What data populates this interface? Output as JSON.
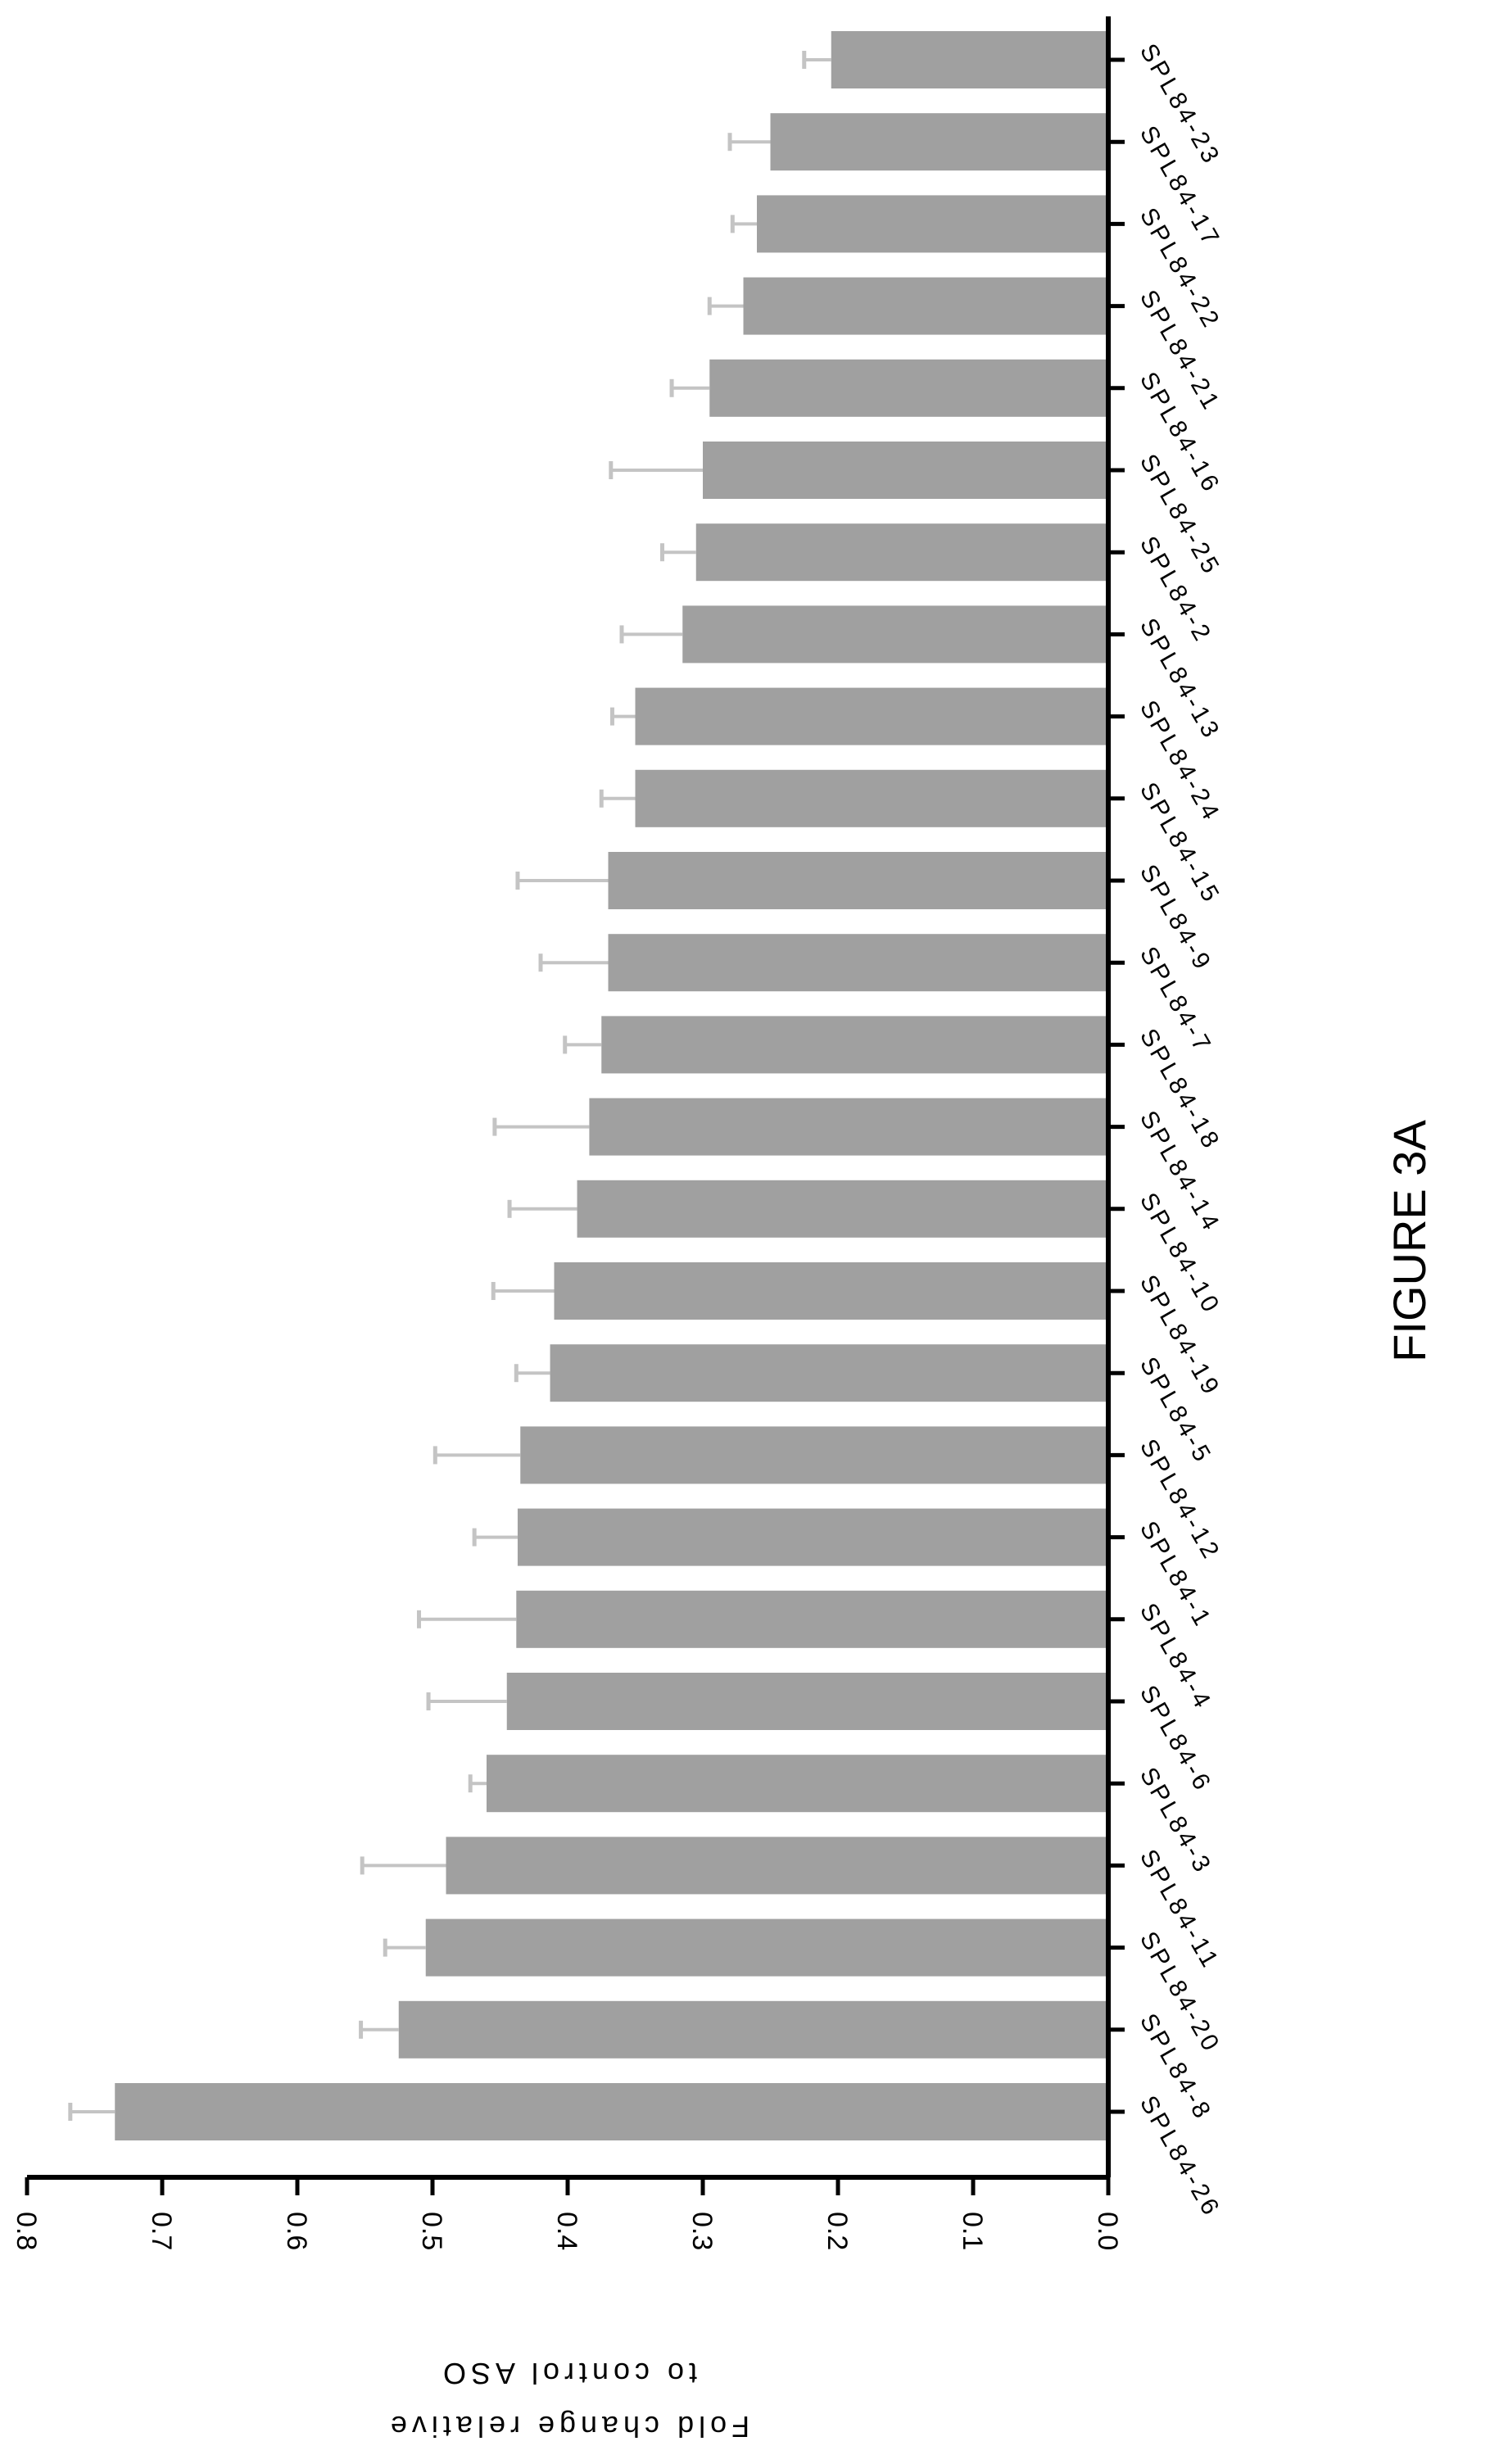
{
  "figure_label": "FIGURE 3A",
  "chart_data": {
    "type": "bar",
    "title": "",
    "xlabel": "",
    "ylabel": "Fold change relative to control ASO",
    "ylabel_lines": [
      "Fold change relative",
      "to control ASO"
    ],
    "ylim": [
      0,
      0.8
    ],
    "yticks": [
      0.0,
      0.1,
      0.2,
      0.3,
      0.4,
      0.5,
      0.6,
      0.7,
      0.8
    ],
    "ytick_labels": [
      "0.0",
      "0.1",
      "0.2",
      "0.3",
      "0.4",
      "0.5",
      "0.6",
      "0.7",
      "0.8"
    ],
    "categories": [
      "SPL84-26",
      "SPL84-8",
      "SPL84-20",
      "SPL84-11",
      "SPL84-3",
      "SPL84-6",
      "SPL84-4",
      "SPL84-1",
      "SPL84-12",
      "SPL84-5",
      "SPL84-19",
      "SPL84-10",
      "SPL84-14",
      "SPL84-18",
      "SPL84-7",
      "SPL84-9",
      "SPL84-15",
      "SPL84-24",
      "SPL84-13",
      "SPL84-2",
      "SPL84-25",
      "SPL84-16",
      "SPL84-21",
      "SPL84-22",
      "SPL84-17",
      "SPL84-23"
    ],
    "values": [
      0.735,
      0.525,
      0.505,
      0.49,
      0.46,
      0.445,
      0.438,
      0.437,
      0.435,
      0.413,
      0.41,
      0.393,
      0.384,
      0.375,
      0.37,
      0.37,
      0.35,
      0.35,
      0.315,
      0.305,
      0.3,
      0.295,
      0.27,
      0.26,
      0.25,
      0.205
    ],
    "errors": [
      0.033,
      0.028,
      0.03,
      0.062,
      0.012,
      0.058,
      0.072,
      0.032,
      0.063,
      0.025,
      0.045,
      0.05,
      0.07,
      0.027,
      0.05,
      0.067,
      0.025,
      0.017,
      0.045,
      0.025,
      0.068,
      0.028,
      0.025,
      0.018,
      0.03,
      0.02
    ],
    "grid": false,
    "legend": "none",
    "orientation": "rotated-90-clockwise",
    "colors": {
      "bar": "#a0a0a0",
      "error": "#c4c4c4",
      "axis": "#000000"
    }
  }
}
